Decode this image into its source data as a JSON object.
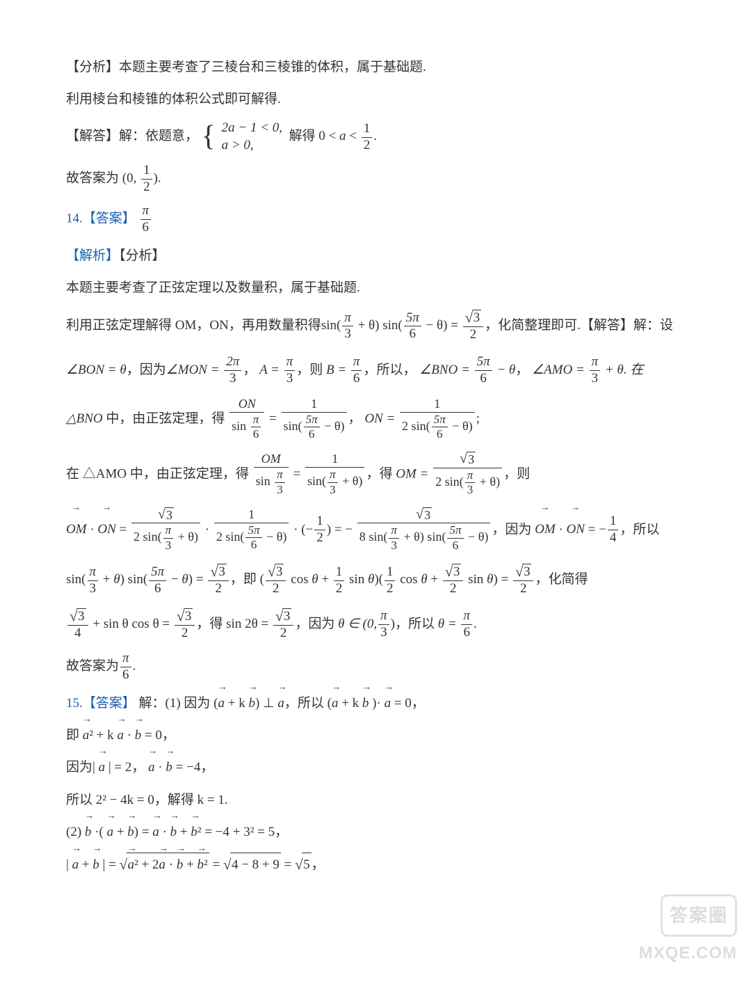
{
  "text_color": "#333333",
  "label_color": "#1a5fb4",
  "background": "#ffffff",
  "font_family": "SimSun",
  "base_fontsize": 19,
  "line_height": 1.8,
  "watermark": {
    "badge_text": "答案圈",
    "url_text": "MXQE.COM",
    "opacity": 0.28,
    "badge_color": "#888888",
    "border_color": "#999999"
  },
  "analysis_intro": {
    "label": "【分析】",
    "text": "本题主要考查了三棱台和三棱锥的体积，属于基础题."
  },
  "method_line": "利用棱台和棱锥的体积公式即可解得.",
  "solution_13": {
    "label": "【解答】",
    "prefix": "解：依题意，",
    "system_line1": "2a − 1 < 0,",
    "system_line2": "a > 0,",
    "result_prefix": "解得",
    "result_expr": "0 < a < 1/2",
    "result_num": "1",
    "result_den": "2",
    "conclusion_prefix": "故答案为",
    "conclusion_open": "(0,",
    "conclusion_num": "1",
    "conclusion_den": "2",
    "conclusion_close": ")."
  },
  "q14": {
    "number": "14.",
    "answer_label": "【答案】",
    "answer_num": "π",
    "answer_den": "6",
    "analysis_label": "【解析】",
    "sub_label": "【分析】",
    "topic": "本题主要考查了正弦定理以及数量积，属于基础题.",
    "method_text": "利用正弦定理解得 OM，ON，再用数量积得",
    "method_expr_lhs_1": "sin(",
    "method_f1_num": "π",
    "method_f1_den": "3",
    "method_plus_theta": " + θ)",
    "method_expr_mid": " sin(",
    "method_f2_num": "5π",
    "method_f2_den": "6",
    "method_minus_theta": " − θ) = ",
    "method_rhs_num": "3",
    "method_rhs_num_sqrt": "√",
    "method_rhs_den": "2",
    "method_tail": "，化简整理即可.",
    "solve_label": "【解答】",
    "solve_intro": "解：设",
    "angle_bon": "∠BON = θ",
    "because": "，因为",
    "angle_mon_lhs": "∠MON = ",
    "angle_mon_num": "2π",
    "angle_mon_den": "3",
    "A_eq": "A = ",
    "A_num": "π",
    "A_den": "3",
    "then": "，则",
    "B_eq": "B = ",
    "B_num": "π",
    "B_den": "6",
    "so": "，所以，",
    "bno_lhs": "∠BNO = ",
    "bno_num": "5π",
    "bno_den": "6",
    "bno_tail": " − θ",
    "amo_lhs": "∠AMO = ",
    "amo_num": "π",
    "amo_den": "3",
    "amo_tail": " + θ. 在",
    "triangle_bno": "△BNO",
    "in_tri": " 中，由正弦定理，得",
    "sinelaw_ON_num": "ON",
    "sinelaw_ON_den_label": "sin",
    "sinelaw_ON_den_num": "π",
    "sinelaw_ON_den_den": "6",
    "eq": " = ",
    "sinelaw_1_num": "1",
    "sinelaw_1_den_prefix": "sin(",
    "sinelaw_1_den_num": "5π",
    "sinelaw_1_den_den": "6",
    "sinelaw_1_den_suffix": " − θ)",
    "ON_eq": "ON = ",
    "ON_result_num": "1",
    "ON_result_den_prefix": "2 sin(",
    "ON_result_den_num": "5π",
    "ON_result_den_den": "6",
    "ON_result_den_suffix": " − θ)",
    "semicolon": ";",
    "triangle_amo": "在 △AMO 中，由正弦定理，得",
    "OM_num": "OM",
    "OM_den_label": "sin",
    "OM_den_num": "π",
    "OM_den_den": "3",
    "OM_rhs_num": "1",
    "OM_rhs_den_prefix": "sin(",
    "OM_rhs_den_num": "π",
    "OM_rhs_den_den": "3",
    "OM_rhs_den_suffix": " + θ)",
    "get": "，得",
    "OM_eq": "OM = ",
    "OM_result_num": "3",
    "OM_result_den_prefix": "2 sin(",
    "OM_result_den_num": "π",
    "OM_result_den_den": "3",
    "OM_result_den_suffix": " + θ)",
    "ze": "，则",
    "dot_lhs1": "OM",
    "dot_lhs2": "ON",
    "dot_eq": " = ",
    "dot_t1_num": "3",
    "dot_t1_den_prefix": "2 sin(",
    "dot_t1_den_num": "π",
    "dot_t1_den_den": "3",
    "dot_t1_den_suffix": " + θ)",
    "cdot": " · ",
    "dot_t2_num": "1",
    "dot_t2_den_prefix": "2 sin(",
    "dot_t2_den_num": "5π",
    "dot_t2_den_den": "6",
    "dot_t2_den_suffix": " − θ)",
    "neg_half_num": "1",
    "neg_half_den": "2",
    "final_num": "3",
    "final_den_prefix": "8 sin(",
    "final_den_num1": "π",
    "final_den_den1": "3",
    "final_den_mid": " + θ) sin(",
    "final_den_num2": "5π",
    "final_den_den2": "6",
    "final_den_suffix": " − θ)",
    "because_dot": "，因为",
    "dot_val_num": "1",
    "dot_val_den": "4",
    "so2": "，所以",
    "expand_a_num": "3",
    "expand_a_den": "2",
    "expand_b_num": "1",
    "expand_b_den": "2",
    "simplify": "，化简得",
    "simp_lhs_num": "3",
    "simp_lhs_den": "4",
    "plus_sincos": " + sin θ cos θ = ",
    "simp_rhs_num": "3",
    "simp_rhs_den": "2",
    "get2": "，得",
    "sin2theta": "sin 2θ = ",
    "sin2_num": "3",
    "sin2_den": "2",
    "because_theta": "，因为",
    "theta_range_open": "θ ∈ (0,",
    "theta_range_num": "π",
    "theta_range_den": "3",
    "theta_range_close": ")",
    "so_theta": "，所以",
    "theta_eq": "θ = ",
    "theta_num": "π",
    "theta_den": "6",
    "conclusion": "故答案为",
    "conc_num": "π",
    "conc_den": "6"
  },
  "q15": {
    "number": "15.",
    "answer_label": "【答案】",
    "part1_prefix": "解：(1) 因为 (",
    "vec_a": "a",
    "vec_b": "b",
    "plus_k": " + k ",
    "perp": ") ⊥ ",
    "so": "，所以 (",
    "dot_eq_zero": " = 0，",
    "line2_prefix": "即 ",
    "a_sq": "² + k ",
    "dot_ab": " · ",
    "eq_zero": " = 0，",
    "line3_prefix": "因为| ",
    "a_abs_val": " | = 2， ",
    "ab_dot_val": " = −4，",
    "line4": "所以 2² − 4k = 0，解得 k = 1.",
    "part2_prefix": "(2) ",
    "dot_open": " ·( ",
    "plus": " + ",
    "close_eq": ") = ",
    "b_sq": "² = −4 + 3² = 5，",
    "line_last_prefix": "| ",
    "line_last_mid": " | = ",
    "sqrt_content": "² + 2",
    "sqrt_content2": " + ",
    "sqrt_content3": "²",
    "eq_sqrt": " = ",
    "sqrt_vals": "4 − 8 + 9",
    "eq_sqrt5": " = ",
    "sqrt5": "5",
    "comma": "，"
  }
}
